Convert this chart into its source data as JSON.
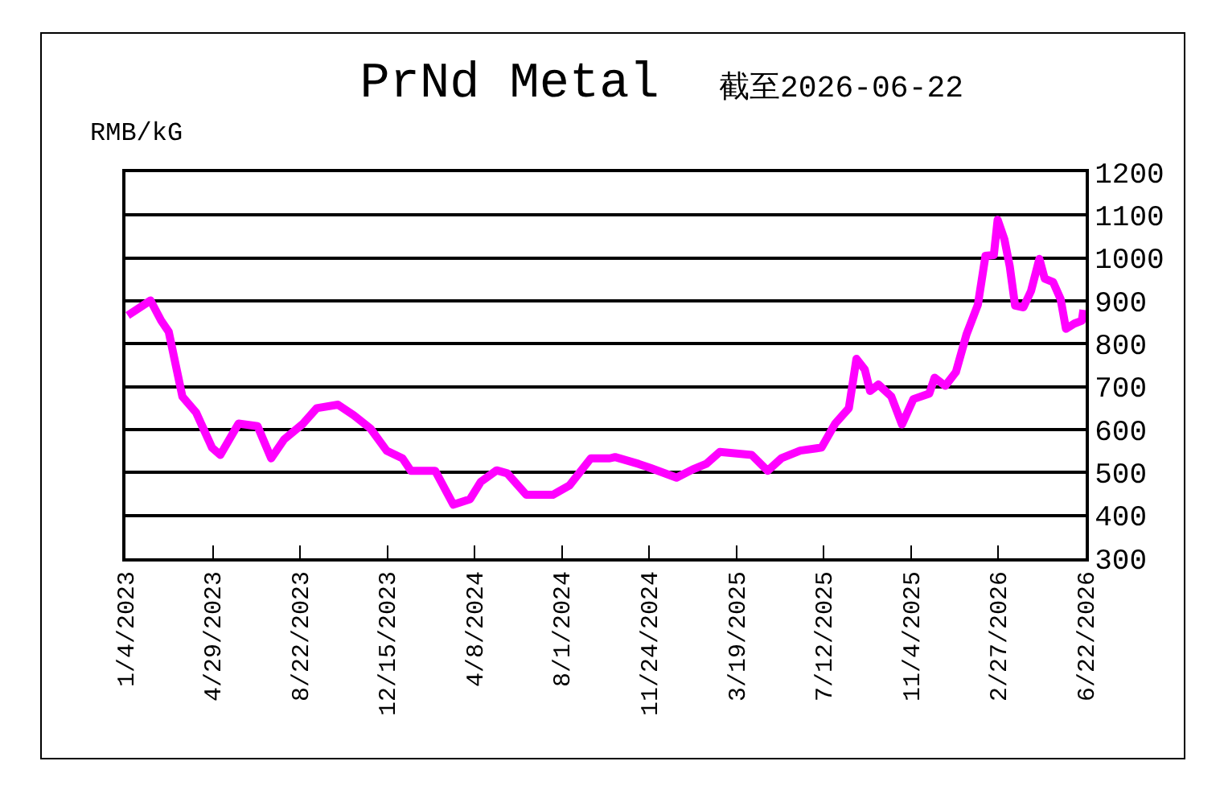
{
  "chart_data": {
    "type": "line",
    "title": "PrNd Metal",
    "subtitle": "截至2026-06-22",
    "ylabel": "RMB/kG",
    "x": [
      "2023-01-07",
      "2023-02-06",
      "2023-02-20",
      "2023-03-02",
      "2023-03-20",
      "2023-04-07",
      "2023-04-28",
      "2023-05-09",
      "2023-06-02",
      "2023-06-27",
      "2023-07-15",
      "2023-08-01",
      "2023-08-26",
      "2023-09-13",
      "2023-10-11",
      "2023-11-01",
      "2023-11-23",
      "2023-12-14",
      "2024-01-04",
      "2024-01-15",
      "2024-02-16",
      "2024-03-11",
      "2024-04-02",
      "2024-04-16",
      "2024-05-07",
      "2024-05-21",
      "2024-06-15",
      "2024-07-20",
      "2024-08-11",
      "2024-09-08",
      "2024-10-03",
      "2024-10-10",
      "2024-11-10",
      "2024-11-25",
      "2024-12-30",
      "2025-01-20",
      "2025-02-07",
      "2025-02-25",
      "2025-04-08",
      "2025-04-29",
      "2025-05-17",
      "2025-06-11",
      "2025-07-09",
      "2025-07-27",
      "2025-08-14",
      "2025-08-24",
      "2025-09-04",
      "2025-09-11",
      "2025-09-22",
      "2025-10-09",
      "2025-10-23",
      "2025-11-07",
      "2025-11-28",
      "2025-12-05",
      "2025-12-19",
      "2026-01-02",
      "2026-01-16",
      "2026-01-31",
      "2026-02-10",
      "2026-02-21",
      "2026-02-26",
      "2026-03-07",
      "2026-03-14",
      "2026-03-21",
      "2026-04-01",
      "2026-04-11",
      "2026-04-22",
      "2026-04-29",
      "2026-05-10",
      "2026-05-20",
      "2026-05-27",
      "2026-06-07",
      "2026-06-17",
      "2026-06-19"
    ],
    "series": [
      {
        "color": "#ff00ff",
        "values": [
          866,
          901,
          854,
          828,
          677,
          640,
          558,
          541,
          614,
          608,
          533,
          577,
          614,
          650,
          658,
          633,
          602,
          551,
          533,
          504,
          504,
          425,
          438,
          478,
          505,
          498,
          448,
          448,
          470,
          533,
          533,
          536,
          520,
          511,
          488,
          507,
          520,
          548,
          541,
          504,
          533,
          551,
          558,
          614,
          650,
          765,
          740,
          690,
          705,
          677,
          612,
          671,
          684,
          721,
          702,
          734,
          822,
          891,
          1005,
          1007,
          1089,
          1043,
          980,
          889,
          885,
          923,
          998,
          952,
          944,
          904,
          835,
          847,
          854,
          879
        ]
      }
    ],
    "xlim": [
      "2023-01-04",
      "2026-06-22"
    ],
    "xticks": [
      {
        "value": "2023-01-04",
        "label": "1/4/2023"
      },
      {
        "value": "2023-04-29",
        "label": "4/29/2023"
      },
      {
        "value": "2023-08-22",
        "label": "8/22/2023"
      },
      {
        "value": "2023-12-15",
        "label": "12/15/2023"
      },
      {
        "value": "2024-04-08",
        "label": "4/8/2024"
      },
      {
        "value": "2024-08-01",
        "label": "8/1/2024"
      },
      {
        "value": "2024-11-24",
        "label": "11/24/2024"
      },
      {
        "value": "2025-03-19",
        "label": "3/19/2025"
      },
      {
        "value": "2025-07-12",
        "label": "7/12/2025"
      },
      {
        "value": "2025-11-04",
        "label": "11/4/2025"
      },
      {
        "value": "2026-02-27",
        "label": "2/27/2026"
      },
      {
        "value": "2026-06-22",
        "label": "6/22/2026"
      }
    ],
    "ylim": [
      300,
      1200
    ],
    "yticks": [
      300,
      400,
      500,
      600,
      700,
      800,
      900,
      1000,
      1100,
      1200
    ],
    "grid": "y",
    "marker": "none",
    "line_style": "solid"
  }
}
